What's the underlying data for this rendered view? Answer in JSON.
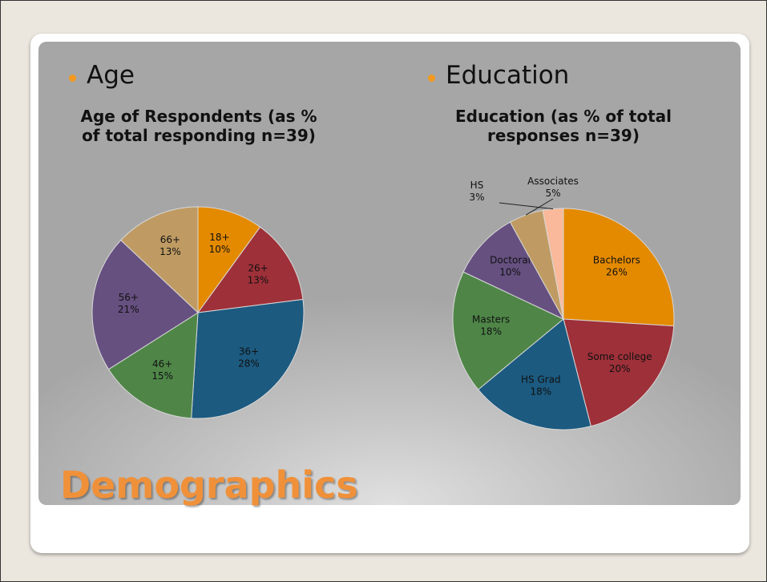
{
  "slide": {
    "title": "Demographics",
    "bullets": [
      "Age",
      "Education"
    ]
  },
  "chart_data": [
    {
      "type": "pie",
      "title": "Age of Respondents (as % of total responding n=39)",
      "categories": [
        "18+",
        "26+",
        "36+",
        "46+",
        "56+",
        "66+"
      ],
      "values": [
        10,
        13,
        28,
        15,
        21,
        13
      ],
      "value_labels": [
        "10%",
        "13%",
        "28%",
        "15%",
        "21%",
        "13%"
      ],
      "colors": [
        "#e48a00",
        "#9e3039",
        "#1c5a80",
        "#4f8648",
        "#665080",
        "#bf9b63"
      ]
    },
    {
      "type": "pie",
      "title": "Education (as % of total responses n=39)",
      "categories": [
        "Bachelors",
        "Some college",
        "HS Grad",
        "Masters",
        "Doctoral",
        "Associates",
        "HS"
      ],
      "values": [
        26,
        20,
        18,
        18,
        10,
        5,
        3
      ],
      "value_labels": [
        "26%",
        "20%",
        "18%",
        "18%",
        "10%",
        "5%",
        "3%"
      ],
      "colors": [
        "#e48a00",
        "#9e3039",
        "#1c5a80",
        "#4f8648",
        "#665080",
        "#bf9b63",
        "#f9b99a"
      ]
    }
  ]
}
